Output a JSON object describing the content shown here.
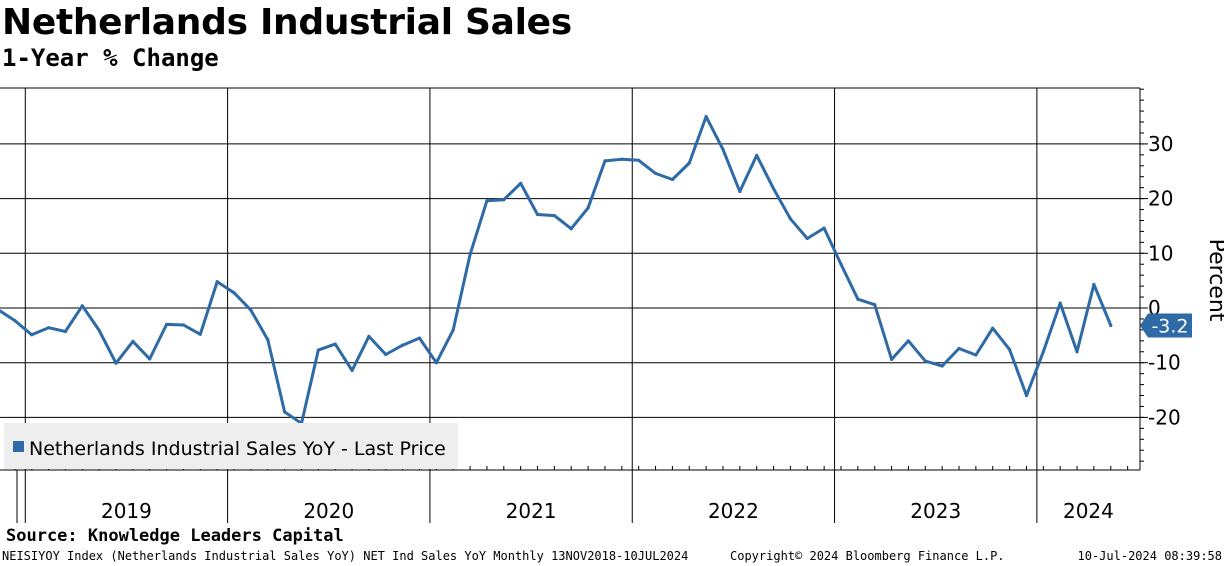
{
  "header": {
    "title": "Netherlands Industrial Sales",
    "subtitle": "1-Year % Change"
  },
  "footer": {
    "source": "Source: Knowledge Leaders Capital",
    "ticker_info": "NEISIYOY Index (Netherlands Industrial Sales YoY) NET Ind Sales YoY  Monthly 13NOV2018-10JUL2024",
    "copyright": "Copyright© 2024 Bloomberg Finance L.P.",
    "timestamp": "10-Jul-2024 08:39:58"
  },
  "colors": {
    "series": "#2e6aa6",
    "grid": "#000000",
    "legend_bg": "#eeeeee"
  },
  "chart_data": {
    "type": "line",
    "title": "Netherlands Industrial Sales",
    "subtitle": "1-Year % Change",
    "ylabel": "Percent",
    "ylim": [
      -30,
      40
    ],
    "yticks": [
      -20,
      -10,
      0,
      10,
      20,
      30
    ],
    "ytick_labels": [
      "-20",
      "-10",
      "0",
      "10",
      "20",
      "30"
    ],
    "x_range": [
      "2018-11",
      "2024-07"
    ],
    "year_labels": [
      "2019",
      "2020",
      "2021",
      "2022",
      "2023",
      "2024"
    ],
    "legend": "Netherlands Industrial Sales YoY - Last Price",
    "legend_position": "bottom-left",
    "last_value_label": "-3.2",
    "last_value": -3.2,
    "series": [
      {
        "name": "Netherlands Industrial Sales YoY - Last Price",
        "x": [
          "2018-11",
          "2018-12",
          "2019-01",
          "2019-02",
          "2019-03",
          "2019-04",
          "2019-05",
          "2019-06",
          "2019-07",
          "2019-08",
          "2019-09",
          "2019-10",
          "2019-11",
          "2019-12",
          "2020-01",
          "2020-02",
          "2020-03",
          "2020-04",
          "2020-05",
          "2020-06",
          "2020-07",
          "2020-08",
          "2020-09",
          "2020-10",
          "2020-11",
          "2020-12",
          "2021-01",
          "2021-02",
          "2021-03",
          "2021-04",
          "2021-05",
          "2021-06",
          "2021-07",
          "2021-08",
          "2021-09",
          "2021-10",
          "2021-11",
          "2021-12",
          "2022-01",
          "2022-02",
          "2022-03",
          "2022-04",
          "2022-05",
          "2022-06",
          "2022-07",
          "2022-08",
          "2022-09",
          "2022-10",
          "2022-11",
          "2022-12",
          "2023-01",
          "2023-02",
          "2023-03",
          "2023-04",
          "2023-05",
          "2023-06",
          "2023-07",
          "2023-08",
          "2023-09",
          "2023-10",
          "2023-11",
          "2023-12",
          "2024-01",
          "2024-02",
          "2024-03",
          "2024-04",
          "2024-05"
        ],
        "values": [
          -0.3,
          -2.3,
          -4.9,
          -3.6,
          -4.3,
          0.4,
          -4.1,
          -10.1,
          -6.1,
          -9.3,
          -3.0,
          -3.1,
          -4.8,
          4.8,
          2.8,
          -0.4,
          -5.8,
          -19.0,
          -21.1,
          -7.7,
          -6.6,
          -11.4,
          -5.2,
          -8.5,
          -6.8,
          -5.5,
          -10.0,
          -4.0,
          9.8,
          19.6,
          19.8,
          22.8,
          17.1,
          16.9,
          14.5,
          18.3,
          26.9,
          27.2,
          27.0,
          24.6,
          23.5,
          26.5,
          35.0,
          29.0,
          21.3,
          27.9,
          21.8,
          16.3,
          12.7,
          14.6,
          8.0,
          1.6,
          0.6,
          -9.4,
          -6.0,
          -9.7,
          -10.6,
          -7.4,
          -8.6,
          -3.7,
          -7.6,
          -16.0,
          -8.0,
          0.9,
          -8.0,
          4.3,
          -3.2
        ]
      }
    ]
  }
}
